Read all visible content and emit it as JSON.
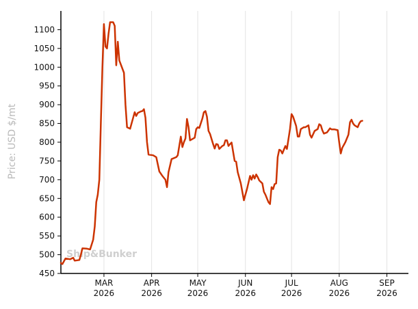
{
  "chart_data": {
    "type": "line",
    "title": "",
    "ylabel": "Price: USD $/mt",
    "watermark": "Ship&Bunker",
    "ylim": [
      450,
      1150
    ],
    "yticks": [
      450,
      500,
      550,
      600,
      650,
      700,
      750,
      800,
      850,
      900,
      950,
      1000,
      1050,
      1100
    ],
    "xlim": [
      "2026-02-01",
      "2026-09-15"
    ],
    "xticks": [
      {
        "month": "MAR",
        "year": "2026",
        "date": "2026-03-01"
      },
      {
        "month": "APR",
        "year": "2026",
        "date": "2026-04-01"
      },
      {
        "month": "MAY",
        "year": "2026",
        "date": "2026-05-01"
      },
      {
        "month": "JUN",
        "year": "2026",
        "date": "2026-06-01"
      },
      {
        "month": "JUL",
        "year": "2026",
        "date": "2026-07-01"
      },
      {
        "month": "AUG",
        "year": "2026",
        "date": "2026-08-01"
      },
      {
        "month": "SEP",
        "year": "2026",
        "date": "2026-09-01"
      }
    ],
    "grid": "x-only",
    "series": [
      {
        "color": "#cc3300",
        "points": [
          [
            "2026-02-01",
            478
          ],
          [
            "2026-02-02",
            475
          ],
          [
            "2026-02-04",
            490
          ],
          [
            "2026-02-07",
            488
          ],
          [
            "2026-02-09",
            492
          ],
          [
            "2026-02-10",
            484
          ],
          [
            "2026-02-13",
            486
          ],
          [
            "2026-02-14",
            500
          ],
          [
            "2026-02-15",
            517
          ],
          [
            "2026-02-18",
            516
          ],
          [
            "2026-02-20",
            514
          ],
          [
            "2026-02-22",
            540
          ],
          [
            "2026-02-23",
            575
          ],
          [
            "2026-02-24",
            640
          ],
          [
            "2026-02-25",
            660
          ],
          [
            "2026-02-26",
            700
          ],
          [
            "2026-02-27",
            850
          ],
          [
            "2026-02-28",
            1000
          ],
          [
            "2026-03-01",
            1115
          ],
          [
            "2026-03-02",
            1055
          ],
          [
            "2026-03-03",
            1050
          ],
          [
            "2026-03-04",
            1090
          ],
          [
            "2026-03-05",
            1120
          ],
          [
            "2026-03-07",
            1120
          ],
          [
            "2026-03-08",
            1110
          ],
          [
            "2026-03-09",
            1005
          ],
          [
            "2026-03-10",
            1068
          ],
          [
            "2026-03-11",
            1018
          ],
          [
            "2026-03-14",
            985
          ],
          [
            "2026-03-15",
            900
          ],
          [
            "2026-03-16",
            840
          ],
          [
            "2026-03-18",
            836
          ],
          [
            "2026-03-20",
            865
          ],
          [
            "2026-03-21",
            880
          ],
          [
            "2026-03-22",
            870
          ],
          [
            "2026-03-23",
            878
          ],
          [
            "2026-03-25",
            882
          ],
          [
            "2026-03-26",
            883
          ],
          [
            "2026-03-27",
            888
          ],
          [
            "2026-03-28",
            865
          ],
          [
            "2026-03-29",
            800
          ],
          [
            "2026-03-30",
            767
          ],
          [
            "2026-04-02",
            765
          ],
          [
            "2026-04-04",
            760
          ],
          [
            "2026-04-06",
            722
          ],
          [
            "2026-04-08",
            710
          ],
          [
            "2026-04-10",
            700
          ],
          [
            "2026-04-11",
            680
          ],
          [
            "2026-04-12",
            720
          ],
          [
            "2026-04-14",
            755
          ],
          [
            "2026-04-17",
            760
          ],
          [
            "2026-04-18",
            765
          ],
          [
            "2026-04-20",
            815
          ],
          [
            "2026-04-21",
            787
          ],
          [
            "2026-04-22",
            800
          ],
          [
            "2026-04-23",
            810
          ],
          [
            "2026-04-24",
            862
          ],
          [
            "2026-04-25",
            840
          ],
          [
            "2026-04-26",
            805
          ],
          [
            "2026-04-29",
            812
          ],
          [
            "2026-04-30",
            835
          ],
          [
            "2026-05-01",
            840
          ],
          [
            "2026-05-02",
            838
          ],
          [
            "2026-05-04",
            863
          ],
          [
            "2026-05-05",
            880
          ],
          [
            "2026-05-06",
            883
          ],
          [
            "2026-05-07",
            868
          ],
          [
            "2026-05-08",
            830
          ],
          [
            "2026-05-09",
            822
          ],
          [
            "2026-05-11",
            795
          ],
          [
            "2026-05-12",
            783
          ],
          [
            "2026-05-13",
            795
          ],
          [
            "2026-05-14",
            794
          ],
          [
            "2026-05-15",
            782
          ],
          [
            "2026-05-17",
            790
          ],
          [
            "2026-05-18",
            792
          ],
          [
            "2026-05-19",
            805
          ],
          [
            "2026-05-20",
            805
          ],
          [
            "2026-05-21",
            790
          ],
          [
            "2026-05-22",
            795
          ],
          [
            "2026-05-23",
            799
          ],
          [
            "2026-05-25",
            750
          ],
          [
            "2026-05-26",
            748
          ],
          [
            "2026-05-27",
            720
          ],
          [
            "2026-05-29",
            690
          ],
          [
            "2026-05-31",
            645
          ],
          [
            "2026-06-01",
            660
          ],
          [
            "2026-06-02",
            675
          ],
          [
            "2026-06-04",
            710
          ],
          [
            "2026-06-05",
            700
          ],
          [
            "2026-06-06",
            712
          ],
          [
            "2026-06-07",
            703
          ],
          [
            "2026-06-08",
            714
          ],
          [
            "2026-06-09",
            707
          ],
          [
            "2026-06-10",
            698
          ],
          [
            "2026-06-12",
            690
          ],
          [
            "2026-06-13",
            668
          ],
          [
            "2026-06-14",
            660
          ],
          [
            "2026-06-15",
            650
          ],
          [
            "2026-06-16",
            640
          ],
          [
            "2026-06-17",
            635
          ],
          [
            "2026-06-18",
            680
          ],
          [
            "2026-06-19",
            675
          ],
          [
            "2026-06-20",
            688
          ],
          [
            "2026-06-21",
            690
          ],
          [
            "2026-06-22",
            760
          ],
          [
            "2026-06-23",
            780
          ],
          [
            "2026-06-24",
            778
          ],
          [
            "2026-06-25",
            770
          ],
          [
            "2026-06-26",
            780
          ],
          [
            "2026-06-27",
            790
          ],
          [
            "2026-06-28",
            782
          ],
          [
            "2026-06-30",
            835
          ],
          [
            "2026-07-01",
            875
          ],
          [
            "2026-07-02",
            868
          ],
          [
            "2026-07-04",
            843
          ],
          [
            "2026-07-05",
            815
          ],
          [
            "2026-07-06",
            815
          ],
          [
            "2026-07-07",
            835
          ],
          [
            "2026-07-09",
            840
          ],
          [
            "2026-07-10",
            840
          ],
          [
            "2026-07-12",
            845
          ],
          [
            "2026-07-13",
            820
          ],
          [
            "2026-07-14",
            812
          ],
          [
            "2026-07-16",
            830
          ],
          [
            "2026-07-18",
            835
          ],
          [
            "2026-07-19",
            848
          ],
          [
            "2026-07-20",
            845
          ],
          [
            "2026-07-21",
            832
          ],
          [
            "2026-07-22",
            823
          ],
          [
            "2026-07-24",
            826
          ],
          [
            "2026-07-26",
            837
          ],
          [
            "2026-07-27",
            834
          ],
          [
            "2026-07-29",
            834
          ],
          [
            "2026-07-31",
            832
          ],
          [
            "2026-08-01",
            800
          ],
          [
            "2026-08-02",
            770
          ],
          [
            "2026-08-03",
            785
          ],
          [
            "2026-08-05",
            800
          ],
          [
            "2026-08-07",
            820
          ],
          [
            "2026-08-08",
            853
          ],
          [
            "2026-08-09",
            860
          ],
          [
            "2026-08-10",
            850
          ],
          [
            "2026-08-11",
            845
          ],
          [
            "2026-08-13",
            840
          ],
          [
            "2026-08-14",
            850
          ],
          [
            "2026-08-15",
            856
          ],
          [
            "2026-08-16",
            857
          ]
        ]
      }
    ]
  }
}
